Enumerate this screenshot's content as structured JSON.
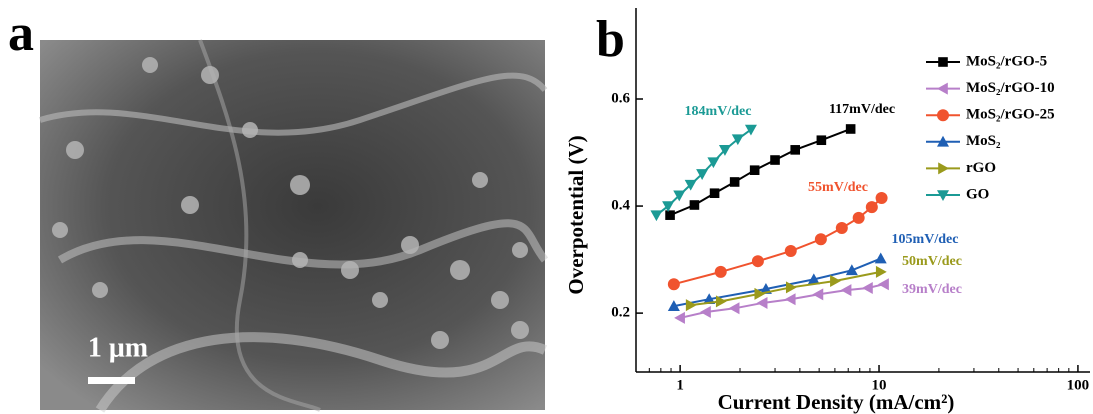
{
  "panel_a": {
    "label": "a",
    "scale_bar": "1 μm"
  },
  "chart_data": {
    "type": "line",
    "panel_label": "b",
    "x_label": "Current Density (mA/cm²)",
    "y_label": "Overpotential (V)",
    "xlog": true,
    "xlim": [
      0.6,
      115
    ],
    "ylim": [
      0.09,
      0.77
    ],
    "xticks": [
      1,
      10,
      100
    ],
    "yticks": [
      0.2,
      0.4,
      0.6
    ],
    "legend": "upper right",
    "series": [
      {
        "name": "MoS₂/rGO-5",
        "color": "#000000",
        "marker": "square",
        "annotation": "117mV/dec",
        "x": [
          0.89,
          1.18,
          1.49,
          1.88,
          2.37,
          3.0,
          3.79,
          5.13,
          7.2
        ],
        "values": [
          0.383,
          0.402,
          0.424,
          0.445,
          0.467,
          0.486,
          0.505,
          0.523,
          0.544
        ]
      },
      {
        "name": "MoS₂/rGO-10",
        "color": "#b77fc9",
        "marker": "triangle-left",
        "annotation": "39mV/dec",
        "x": [
          1.0,
          1.35,
          1.88,
          2.6,
          3.6,
          4.96,
          6.87,
          8.8,
          10.6
        ],
        "values": [
          0.191,
          0.202,
          0.209,
          0.219,
          0.226,
          0.235,
          0.243,
          0.247,
          0.254
        ]
      },
      {
        "name": "MoS₂/rGO-25",
        "color": "#f0532e",
        "marker": "circle",
        "annotation": "55mV/dec",
        "x": [
          0.93,
          1.6,
          2.46,
          3.6,
          5.1,
          6.5,
          7.9,
          9.2,
          10.3
        ],
        "values": [
          0.254,
          0.277,
          0.297,
          0.316,
          0.338,
          0.359,
          0.378,
          0.398,
          0.415
        ]
      },
      {
        "name": "MoS₂",
        "color": "#1f5fb4",
        "marker": "triangle-up",
        "annotation": "105mV/dec",
        "x": [
          0.93,
          1.4,
          2.7,
          4.7,
          7.3,
          10.2
        ],
        "values": [
          0.213,
          0.226,
          0.245,
          0.263,
          0.28,
          0.302
        ]
      },
      {
        "name": "rGO",
        "color": "#9a9a1c",
        "marker": "triangle-right",
        "annotation": "50mV/dec",
        "x": [
          1.13,
          1.6,
          2.5,
          3.6,
          6.0,
          10.2
        ],
        "values": [
          0.215,
          0.222,
          0.236,
          0.248,
          0.26,
          0.277
        ]
      },
      {
        "name": "GO",
        "color": "#1b9a95",
        "marker": "triangle-down",
        "annotation": "184mV/dec",
        "x": [
          0.76,
          0.87,
          0.99,
          1.13,
          1.29,
          1.47,
          1.68,
          1.95,
          2.27
        ],
        "values": [
          0.383,
          0.4,
          0.42,
          0.44,
          0.46,
          0.482,
          0.505,
          0.525,
          0.543
        ]
      }
    ]
  }
}
